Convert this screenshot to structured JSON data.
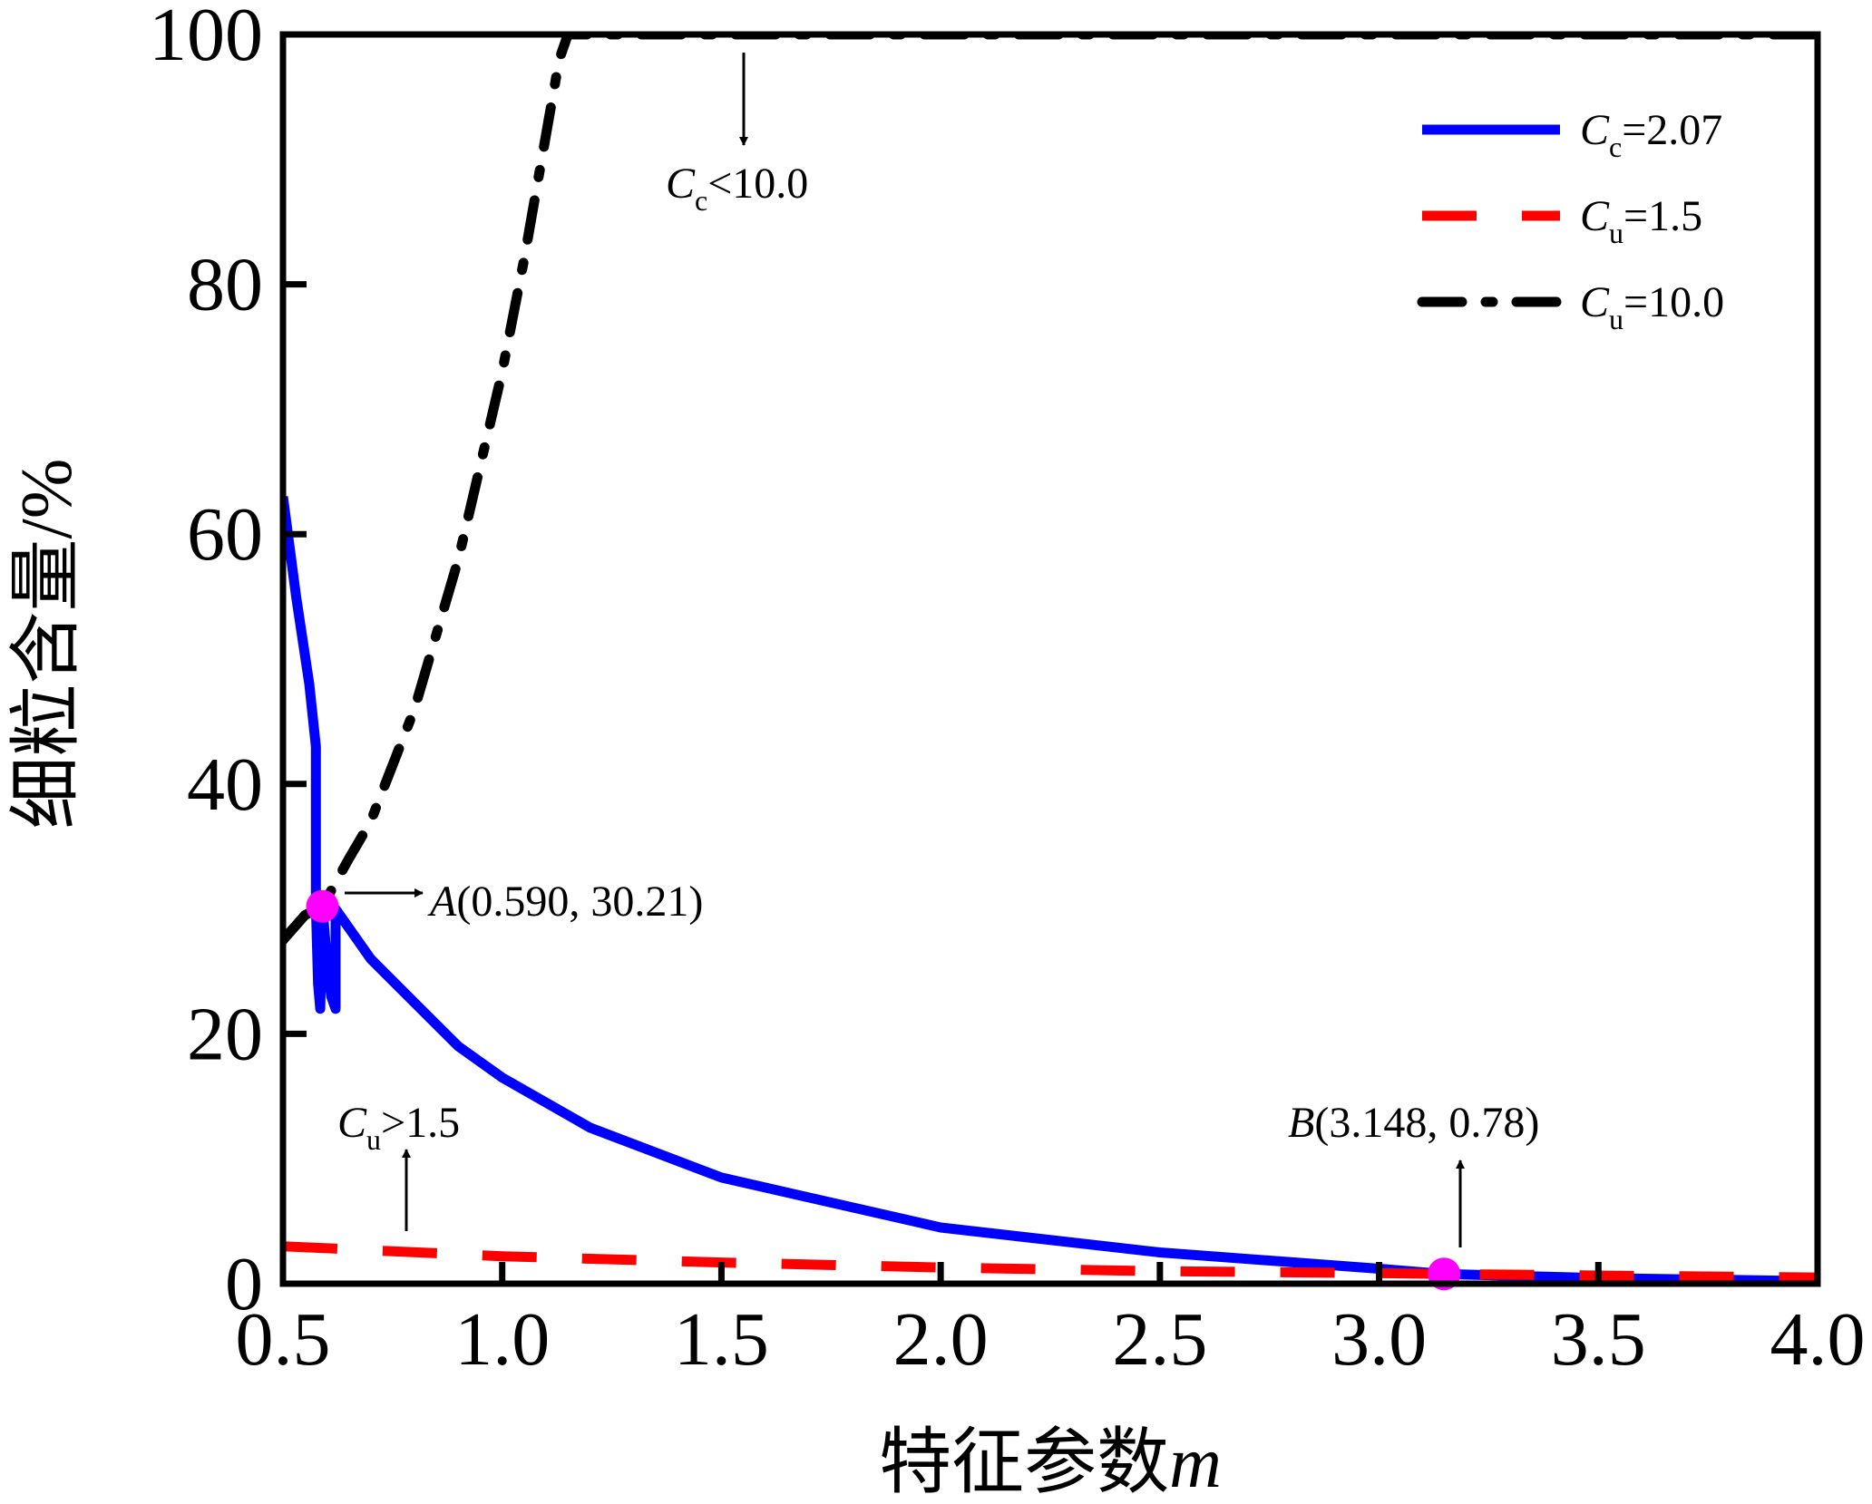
{
  "chart_data": {
    "type": "line",
    "xlabel": {
      "text": "特征参数",
      "var": "m"
    },
    "ylabel": "细粒含量/%",
    "xlim": [
      0.5,
      4.0
    ],
    "ylim": [
      0,
      100
    ],
    "xticks": [
      "0.5",
      "1.0",
      "1.5",
      "2.0",
      "2.5",
      "3.0",
      "3.5",
      "4.0"
    ],
    "yticks": [
      "0",
      "20",
      "40",
      "60",
      "80",
      "100"
    ],
    "grid": false,
    "legend_position": "top-right",
    "series": [
      {
        "name": "Cc=2.07",
        "legend": {
          "var": "C",
          "sub": "c",
          "rest": "=2.07"
        },
        "color": "#0000ff",
        "style": "solid",
        "x": [
          0.5,
          0.53,
          0.56,
          0.575,
          0.575,
          0.58,
          0.585,
          0.59,
          0.6,
          0.61,
          0.62,
          0.62,
          0.65,
          0.7,
          0.8,
          0.9,
          1.0,
          1.2,
          1.5,
          2.0,
          2.5,
          3.0,
          3.148,
          3.5,
          4.0
        ],
        "y": [
          63,
          55,
          48,
          43,
          30.2,
          24,
          22,
          30.21,
          26,
          23,
          22,
          30,
          28.5,
          26,
          22.5,
          19,
          16.5,
          12.5,
          8.5,
          4.5,
          2.5,
          1.2,
          0.78,
          0.45,
          0.2
        ]
      },
      {
        "name": "Cu=1.5",
        "legend": {
          "var": "C",
          "sub": "u",
          "rest": "=1.5"
        },
        "color": "#ff0000",
        "style": "dashed",
        "x": [
          0.5,
          1.0,
          1.5,
          2.0,
          2.5,
          3.0,
          3.148,
          3.5,
          4.0
        ],
        "y": [
          3.0,
          2.2,
          1.7,
          1.3,
          1.0,
          0.85,
          0.78,
          0.65,
          0.5
        ]
      },
      {
        "name": "Cu=10.0",
        "legend": {
          "var": "C",
          "sub": "u",
          "rest": "=10.0"
        },
        "color": "#000000",
        "style": "dashdot",
        "x": [
          0.5,
          0.55,
          0.59,
          0.65,
          0.7,
          0.8,
          0.9,
          1.0,
          1.05,
          1.1,
          1.13,
          1.15,
          1.5,
          2.0,
          2.5,
          3.0,
          3.5,
          4.0
        ],
        "y": [
          27.5,
          29.5,
          30.21,
          34,
          37,
          46,
          58,
          73,
          82,
          92,
          98,
          100,
          100,
          100,
          100,
          100,
          100,
          100
        ]
      }
    ],
    "points": [
      {
        "name": "A",
        "x": 0.59,
        "y": 30.21,
        "label": "(0.590, 30.21)",
        "color": "#ff00ff"
      },
      {
        "name": "B",
        "x": 3.148,
        "y": 0.78,
        "label": "(3.148, 0.78)",
        "color": "#ff00ff"
      }
    ],
    "annotations": [
      {
        "var": "C",
        "sub": "c",
        "rest": "<10.0"
      },
      {
        "var": "C",
        "sub": "u",
        "rest": ">1.5"
      }
    ]
  }
}
